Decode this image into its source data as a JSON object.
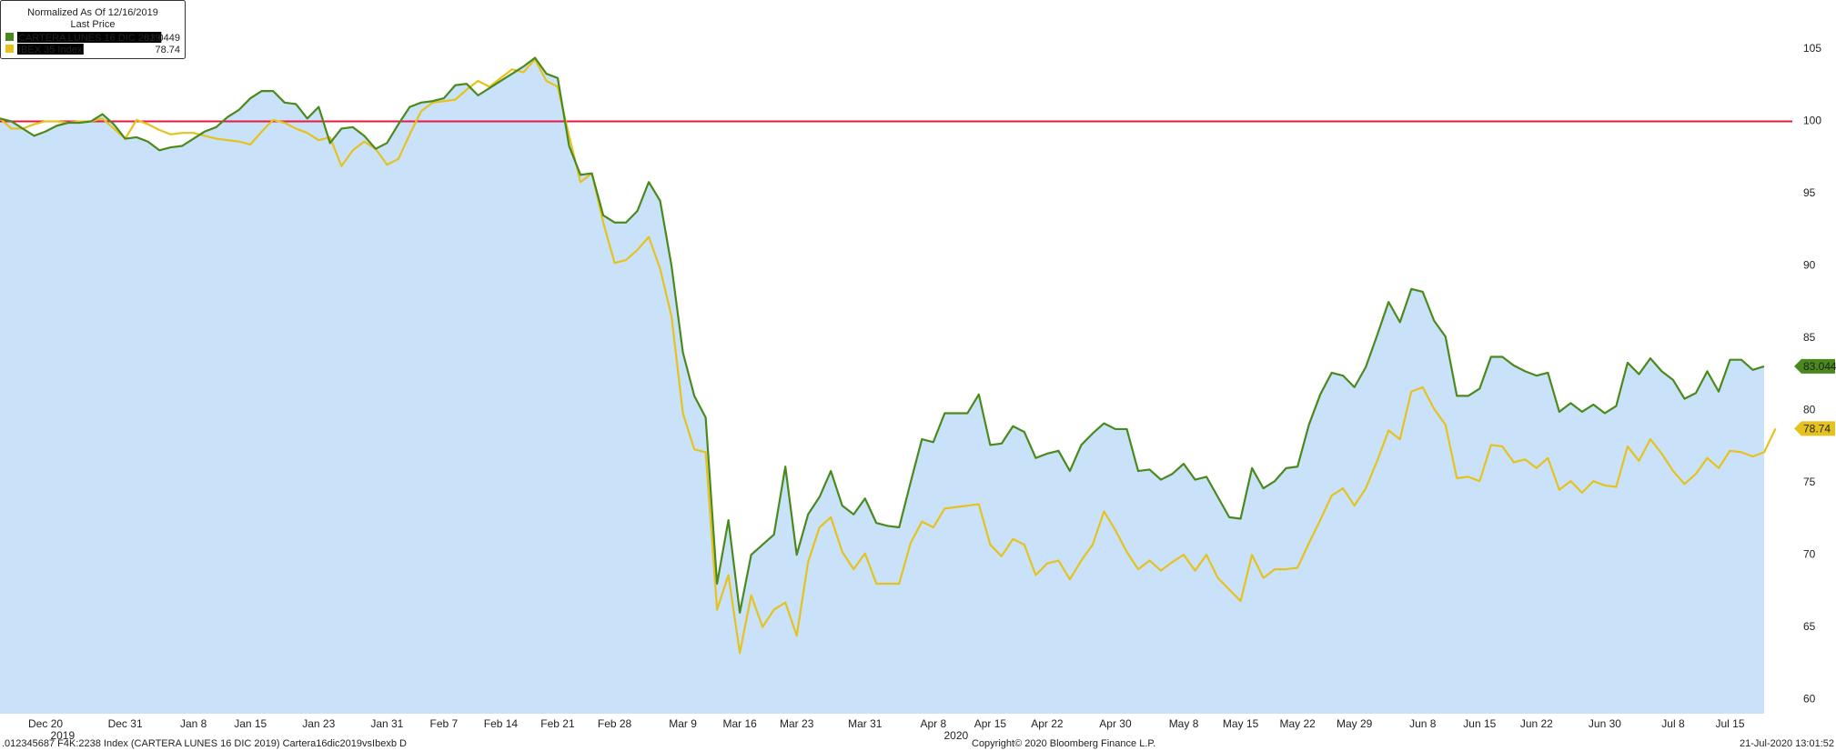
{
  "chart_data": {
    "type": "line",
    "legend": {
      "title": "Normalized As Of 12/16/2019",
      "subtitle": "Last Price",
      "corner": "top-left"
    },
    "categories": [
      null,
      null,
      null,
      null,
      "Dec 20",
      null,
      null,
      null,
      null,
      null,
      null,
      "Dec 31",
      null,
      null,
      null,
      null,
      null,
      "Jan 8",
      null,
      null,
      null,
      null,
      "Jan 15",
      null,
      null,
      null,
      null,
      null,
      "Jan 23",
      null,
      null,
      null,
      null,
      null,
      "Jan 31",
      null,
      null,
      null,
      null,
      "Feb 7",
      null,
      null,
      null,
      null,
      "Feb 14",
      null,
      null,
      null,
      null,
      "Feb 21",
      null,
      null,
      null,
      null,
      "Feb 28",
      null,
      null,
      null,
      null,
      null,
      "Mar 9",
      null,
      null,
      null,
      null,
      "Mar 16",
      null,
      null,
      null,
      null,
      "Mar 23",
      null,
      null,
      null,
      null,
      null,
      "Mar 31",
      null,
      null,
      null,
      null,
      null,
      "Apr 8",
      null,
      null,
      null,
      null,
      "Apr 15",
      null,
      null,
      null,
      null,
      "Apr 22",
      null,
      null,
      null,
      null,
      null,
      "Apr 30",
      null,
      null,
      null,
      null,
      null,
      "May 8",
      null,
      null,
      null,
      null,
      "May 15",
      null,
      null,
      null,
      null,
      "May 22",
      null,
      null,
      null,
      null,
      "May 29",
      null,
      null,
      null,
      null,
      null,
      "Jun 8",
      null,
      null,
      null,
      null,
      "Jun 15",
      null,
      null,
      null,
      null,
      "Jun 22",
      null,
      null,
      null,
      null,
      null,
      "Jun 30",
      null,
      null,
      null,
      null,
      null,
      "Jul 8",
      null,
      null,
      null,
      null,
      "Jul 15",
      null,
      null,
      null,
      null
    ],
    "year_labels": [
      "2019",
      "2020"
    ],
    "series": [
      {
        "name": "CARTERA LUNES 16 DIC 2019",
        "color": "#4a8a1c",
        "fill": "#c9e2fa",
        "values": [
          100.2,
          100,
          99.5,
          99,
          99.3,
          99.7,
          99.9,
          99.9,
          100,
          100.5,
          99.8,
          98.8,
          98.9,
          98.6,
          98,
          98.2,
          98.3,
          98.8,
          99.3,
          99.6,
          100.3,
          100.8,
          101.6,
          102.1,
          102.1,
          101.3,
          101.2,
          100.2,
          101,
          98.5,
          99.5,
          99.6,
          99,
          98.1,
          98.5,
          99.8,
          101,
          101.3,
          101.4,
          101.6,
          102.5,
          102.6,
          101.8,
          102.3,
          102.8,
          103.3,
          103.8,
          104.4,
          103.3,
          103,
          98.3,
          96.3,
          96.4,
          93.5,
          93,
          93,
          93.8,
          95.8,
          94.5,
          90,
          84,
          81,
          79.5,
          68,
          72.4,
          66,
          70,
          70.7,
          71.4,
          76.1,
          70,
          72.8,
          74,
          75.8,
          73.4,
          72.8,
          73.9,
          72.2,
          72,
          71.9,
          75,
          78,
          77.8,
          79.8,
          79.8,
          79.8,
          81.1,
          77.6,
          77.7,
          78.9,
          78.5,
          76.7,
          77,
          77.2,
          75.8,
          77.6,
          78.4,
          79.1,
          78.7,
          78.7,
          75.8,
          75.9,
          75.2,
          75.6,
          76.3,
          75.2,
          75.4,
          74,
          72.6,
          72.5,
          76,
          74.6,
          75.1,
          76,
          76.1,
          79,
          81.1,
          82.6,
          82.4,
          81.6,
          83,
          85.2,
          87.5,
          86.1,
          88.4,
          88.2,
          86.2,
          85.1,
          81,
          81,
          81.5,
          83.7,
          83.7,
          83.1,
          82.7,
          82.4,
          82.6,
          79.9,
          80.5,
          79.9,
          80.4,
          79.8,
          80.3,
          83.3,
          82.5,
          83.6,
          82.7,
          82.1,
          80.8,
          81.2,
          82.7,
          81.3,
          83.5,
          83.5,
          82.8,
          83.0449,
          null
        ]
      },
      {
        "name": "IBEX 35 Index",
        "color": "#e6c21e",
        "values": [
          100.2,
          99.5,
          99.5,
          99.8,
          100,
          100,
          99.9,
          100,
          100,
          100.2,
          99.5,
          98.8,
          100.1,
          99.8,
          99.4,
          99.1,
          99.2,
          99.2,
          99,
          98.8,
          98.7,
          98.6,
          98.4,
          99.3,
          100.1,
          99.9,
          99.5,
          99.2,
          98.7,
          98.9,
          96.9,
          98,
          98.6,
          98.1,
          97,
          97.4,
          99.1,
          100.7,
          101.3,
          101.4,
          101.5,
          102.2,
          102.8,
          102.4,
          103,
          103.6,
          103.4,
          104.3,
          102.8,
          102.4,
          99,
          95.8,
          96.4,
          93,
          90.2,
          90.4,
          91.1,
          92,
          89.8,
          86.5,
          79.8,
          77.3,
          77.1,
          66.2,
          68.6,
          63.2,
          67.2,
          65,
          66.2,
          66.7,
          64.4,
          69.5,
          71.9,
          72.6,
          70.2,
          69,
          70.1,
          68,
          68,
          68,
          70.8,
          72.3,
          71.9,
          73.2,
          73.3,
          73.4,
          73.5,
          70.7,
          69.9,
          71.1,
          70.7,
          68.6,
          69.4,
          69.6,
          68.3,
          69.6,
          70.7,
          73,
          71.7,
          70.2,
          69,
          69.6,
          68.9,
          69.5,
          70,
          68.9,
          70,
          68.4,
          67.6,
          66.8,
          70,
          68.4,
          69,
          69,
          69.1,
          70.8,
          72.4,
          74.1,
          74.6,
          73.4,
          74.6,
          76.5,
          78.6,
          78,
          81.3,
          81.6,
          80.1,
          79,
          75.3,
          75.4,
          75.1,
          77.6,
          77.5,
          76.4,
          76.6,
          76,
          76.7,
          74.5,
          75.1,
          74.3,
          75.1,
          74.8,
          74.7,
          77.5,
          76.5,
          78,
          77,
          75.8,
          74.9,
          75.6,
          76.7,
          76,
          77.2,
          77.1,
          76.8,
          77.1,
          78.74
        ]
      }
    ],
    "reference_line": {
      "value": 100,
      "color": "#e8193c"
    },
    "ylim": [
      59,
      108.4
    ],
    "yticks": [
      60,
      65,
      70,
      75,
      80,
      85,
      90,
      95,
      100,
      105
    ],
    "grid": false,
    "footer": {
      "left": ".012345687 F4K:2238 Index (CARTERA LUNES 16 DIC 2019) Cartera16dic2019vsIbexb  D",
      "center": "Copyright© 2020 Bloomberg Finance L.P.",
      "right": "21-Jul-2020 13:01:52"
    }
  }
}
